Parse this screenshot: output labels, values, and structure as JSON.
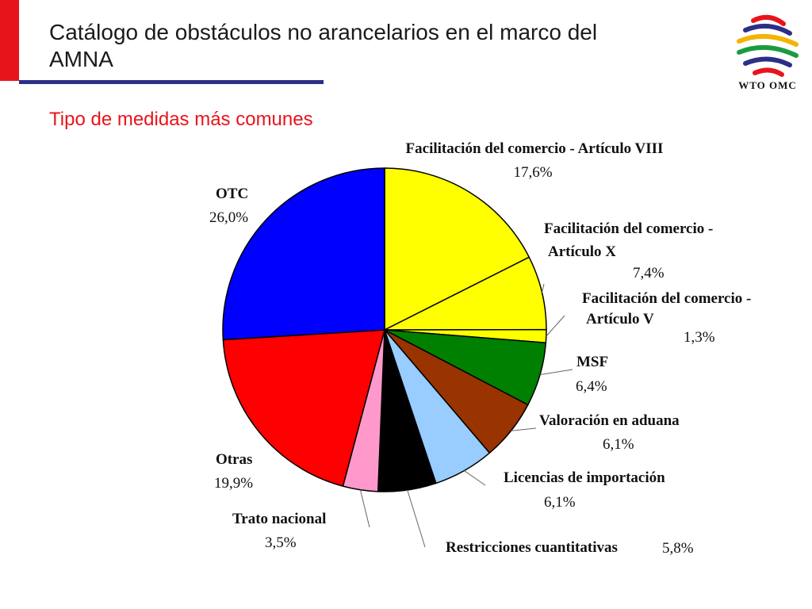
{
  "title": "Catálogo de obstáculos no arancelarios en el marco del AMNA",
  "subtitle": "Tipo de medidas más comunes",
  "logo": {
    "text": "WTO OMC"
  },
  "chart_data": {
    "type": "pie",
    "title": "",
    "slices": [
      {
        "name": "Facilitación del comercio - Artículo VIII",
        "value": 17.6,
        "label": "17,6%",
        "color": "#ffff00"
      },
      {
        "name": "Facilitación del comercio - Artículo X",
        "value": 7.4,
        "label": "7,4%",
        "color": "#ffff00"
      },
      {
        "name": "Facilitación del comercio - Artículo V",
        "value": 1.3,
        "label": "1,3%",
        "color": "#ffff00"
      },
      {
        "name": "MSF",
        "value": 6.4,
        "label": "6,4%",
        "color": "#008000"
      },
      {
        "name": "Valoración en aduana",
        "value": 6.1,
        "label": "6,1%",
        "color": "#993300"
      },
      {
        "name": "Licencias de importación",
        "value": 6.1,
        "label": "6,1%",
        "color": "#99ccff"
      },
      {
        "name": "Restricciones cuantitativas",
        "value": 5.8,
        "label": "5,8%",
        "color": "#000000"
      },
      {
        "name": "Trato nacional",
        "value": 3.5,
        "label": "3,5%",
        "color": "#ff99cc"
      },
      {
        "name": "Otras",
        "value": 19.9,
        "label": "19,9%",
        "color": "#ff0000"
      },
      {
        "name": "OTC",
        "value": 26.0,
        "label": "26,0%",
        "color": "#0000ff"
      }
    ]
  }
}
